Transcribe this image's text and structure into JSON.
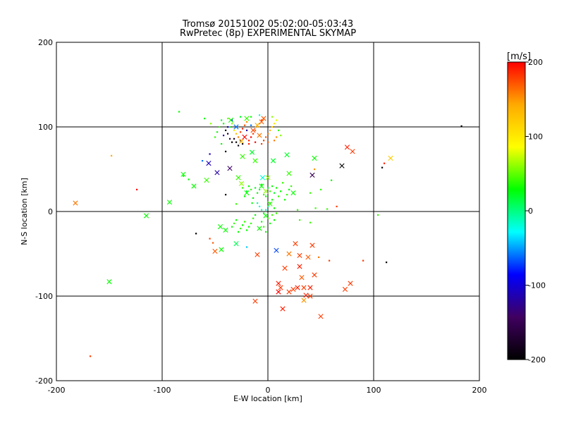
{
  "chart_data": {
    "type": "scatter",
    "title": "Tromsø 20151002 05:02:00-05:03:43",
    "subtitle": "RwPretec (8p) EXPERIMENTAL SKYMAP",
    "xlabel": "E-W location [km]",
    "ylabel": "N-S location [km]",
    "xlim": [
      -200,
      200
    ],
    "ylim": [
      -200,
      200
    ],
    "xticks": [
      "-200",
      "-100",
      "0",
      "100",
      "200"
    ],
    "yticks": [
      "-200",
      "-100",
      "0",
      "100",
      "200"
    ],
    "grid": true,
    "colorbar": {
      "label": "[m/s]",
      "range": [
        -200,
        200
      ],
      "ticks": [
        "200",
        "100",
        "0",
        "-100",
        "-200"
      ],
      "colors": [
        "#ff0000",
        "#ffaa00",
        "#ffff00",
        "#00ff00",
        "#00ffff",
        "#0000ff",
        "#400060",
        "#000000"
      ]
    },
    "cross_points": [
      [
        -182,
        10,
        160
      ],
      [
        -150,
        -83,
        30
      ],
      [
        -115,
        -5,
        30
      ],
      [
        -93,
        11,
        30
      ],
      [
        -80,
        44,
        30
      ],
      [
        -70,
        30,
        30
      ],
      [
        -56,
        57,
        -110
      ],
      [
        -50,
        -47,
        170
      ],
      [
        -58,
        37,
        40
      ],
      [
        -48,
        46,
        -120
      ],
      [
        -45,
        -18,
        30
      ],
      [
        -44,
        -45,
        30
      ],
      [
        -40,
        -22,
        30
      ],
      [
        -36,
        51,
        -140
      ],
      [
        -30,
        -38,
        10
      ],
      [
        -25,
        33,
        60
      ],
      [
        -15,
        70,
        20
      ],
      [
        -10,
        -51,
        180
      ],
      [
        -12,
        -106,
        180
      ],
      [
        -8,
        -20,
        30
      ],
      [
        -5,
        40,
        -20
      ],
      [
        0,
        40,
        60
      ],
      [
        5,
        60,
        20
      ],
      [
        8,
        -46,
        -70
      ],
      [
        10,
        -85,
        190
      ],
      [
        10,
        -95,
        200
      ],
      [
        12,
        -90,
        180
      ],
      [
        14,
        -115,
        190
      ],
      [
        16,
        -67,
        180
      ],
      [
        20,
        -50,
        160
      ],
      [
        20,
        -95,
        180
      ],
      [
        24,
        -92,
        180
      ],
      [
        28,
        -90,
        190
      ],
      [
        26,
        -38,
        180
      ],
      [
        30,
        -52,
        180
      ],
      [
        30,
        -65,
        190
      ],
      [
        32,
        -78,
        170
      ],
      [
        34,
        -90,
        180
      ],
      [
        34,
        -105,
        150
      ],
      [
        36,
        -99,
        190
      ],
      [
        38,
        -54,
        170
      ],
      [
        40,
        -100,
        180
      ],
      [
        40,
        -90,
        190
      ],
      [
        42,
        -40,
        180
      ],
      [
        44,
        -75,
        180
      ],
      [
        44,
        63,
        30
      ],
      [
        42,
        43,
        -150
      ],
      [
        50,
        -124,
        180
      ],
      [
        70,
        54,
        -200
      ],
      [
        75,
        76,
        190
      ],
      [
        73,
        -92,
        180
      ],
      [
        78,
        -85,
        180
      ],
      [
        80,
        71,
        180
      ],
      [
        116,
        63,
        120
      ],
      [
        18,
        67,
        20
      ],
      [
        20,
        45,
        40
      ],
      [
        24,
        22,
        30
      ],
      [
        -20,
        22,
        30
      ],
      [
        2,
        9,
        40
      ],
      [
        -2,
        -5,
        30
      ],
      [
        -20,
        110,
        40
      ],
      [
        -14,
        96,
        180
      ],
      [
        -10,
        102,
        140
      ],
      [
        -8,
        90,
        160
      ],
      [
        -6,
        106,
        170
      ],
      [
        -4,
        110,
        170
      ],
      [
        -25,
        83,
        140
      ],
      [
        -22,
        88,
        200
      ],
      [
        -30,
        100,
        -60
      ],
      [
        -35,
        108,
        30
      ],
      [
        -12,
        60,
        40
      ],
      [
        -28,
        40,
        40
      ],
      [
        -24,
        65,
        40
      ],
      [
        -6,
        30,
        30
      ],
      [
        -2,
        24,
        60
      ]
    ],
    "dot_points": [
      [
        -168,
        -171,
        180
      ],
      [
        -148,
        66,
        140
      ],
      [
        -124,
        26,
        200
      ],
      [
        -84,
        118,
        30
      ],
      [
        -80,
        42,
        30
      ],
      [
        -75,
        38,
        30
      ],
      [
        -62,
        60,
        -60
      ],
      [
        -55,
        68,
        -110
      ],
      [
        -68,
        -26,
        -200
      ],
      [
        -55,
        -32,
        180
      ],
      [
        -52,
        -37,
        170
      ],
      [
        -40,
        71,
        -200
      ],
      [
        -40,
        20,
        -200
      ],
      [
        -30,
        9,
        40
      ],
      [
        -20,
        -42,
        -40
      ],
      [
        -15,
        10,
        30
      ],
      [
        104,
        -4,
        40
      ],
      [
        90,
        -58,
        180
      ],
      [
        112,
        -60,
        -200
      ],
      [
        108,
        52,
        -200
      ],
      [
        110,
        57,
        190
      ],
      [
        183,
        101,
        -200
      ],
      [
        65,
        6,
        180
      ],
      [
        60,
        37,
        30
      ],
      [
        56,
        3,
        40
      ],
      [
        45,
        4,
        40
      ],
      [
        48,
        -54,
        160
      ],
      [
        58,
        -58,
        180
      ],
      [
        44,
        50,
        150
      ],
      [
        28,
        2,
        40
      ],
      [
        30,
        -10,
        40
      ],
      [
        40,
        -13,
        40
      ],
      [
        40,
        22,
        40
      ],
      [
        50,
        26,
        40
      ],
      [
        -12,
        28,
        20
      ],
      [
        -10,
        22,
        30
      ],
      [
        -8,
        26,
        20
      ],
      [
        -6,
        32,
        30
      ],
      [
        -4,
        20,
        40
      ],
      [
        -2,
        18,
        30
      ],
      [
        0,
        28,
        20
      ],
      [
        2,
        24,
        40
      ],
      [
        4,
        30,
        30
      ],
      [
        6,
        22,
        20
      ],
      [
        8,
        28,
        30
      ],
      [
        10,
        18,
        40
      ],
      [
        12,
        24,
        30
      ],
      [
        14,
        34,
        40
      ],
      [
        -14,
        16,
        30
      ],
      [
        -16,
        26,
        40
      ],
      [
        -18,
        30,
        30
      ],
      [
        -20,
        24,
        20
      ],
      [
        -22,
        18,
        30
      ],
      [
        -24,
        28,
        40
      ],
      [
        16,
        14,
        30
      ],
      [
        18,
        20,
        40
      ],
      [
        20,
        26,
        30
      ],
      [
        22,
        30,
        40
      ],
      [
        -10,
        10,
        -10
      ],
      [
        -8,
        6,
        -20
      ],
      [
        -6,
        2,
        -10
      ],
      [
        -4,
        -2,
        20
      ],
      [
        -2,
        2,
        -20
      ],
      [
        0,
        6,
        -10
      ],
      [
        2,
        10,
        30
      ],
      [
        4,
        14,
        30
      ],
      [
        6,
        4,
        30
      ],
      [
        -12,
        -4,
        30
      ],
      [
        -14,
        -8,
        40
      ],
      [
        -16,
        -14,
        40
      ],
      [
        -18,
        -18,
        30
      ],
      [
        -20,
        -22,
        30
      ],
      [
        -22,
        -12,
        40
      ],
      [
        -24,
        -16,
        30
      ],
      [
        -26,
        -20,
        40
      ],
      [
        -28,
        -24,
        30
      ],
      [
        -30,
        -10,
        30
      ],
      [
        -32,
        -14,
        40
      ],
      [
        -34,
        -18,
        30
      ],
      [
        -6,
        -12,
        30
      ],
      [
        -4,
        -18,
        40
      ],
      [
        -2,
        -24,
        30
      ],
      [
        0,
        -8,
        40
      ],
      [
        2,
        -14,
        30
      ],
      [
        4,
        -4,
        40
      ],
      [
        6,
        -10,
        30
      ],
      [
        8,
        -2,
        40
      ],
      [
        -36,
        100,
        30
      ],
      [
        -34,
        104,
        60
      ],
      [
        -32,
        96,
        100
      ],
      [
        -30,
        92,
        130
      ],
      [
        -28,
        88,
        160
      ],
      [
        -26,
        94,
        180
      ],
      [
        -24,
        98,
        190
      ],
      [
        -22,
        102,
        170
      ],
      [
        -20,
        106,
        150
      ],
      [
        -18,
        84,
        190
      ],
      [
        -16,
        88,
        200
      ],
      [
        -14,
        92,
        180
      ],
      [
        -12,
        96,
        160
      ],
      [
        -10,
        100,
        140
      ],
      [
        -8,
        104,
        120
      ],
      [
        -6,
        108,
        190
      ],
      [
        -4,
        84,
        180
      ],
      [
        -2,
        88,
        170
      ],
      [
        0,
        92,
        160
      ],
      [
        2,
        96,
        140
      ],
      [
        4,
        100,
        120
      ],
      [
        6,
        104,
        100
      ],
      [
        8,
        108,
        80
      ],
      [
        -40,
        96,
        -200
      ],
      [
        -38,
        92,
        -180
      ],
      [
        -36,
        86,
        -160
      ],
      [
        -34,
        82,
        -200
      ],
      [
        -32,
        86,
        -180
      ],
      [
        -30,
        82,
        -200
      ],
      [
        -28,
        78,
        -190
      ],
      [
        -26,
        84,
        -200
      ],
      [
        -24,
        80,
        -190
      ],
      [
        -42,
        104,
        30
      ],
      [
        -44,
        108,
        20
      ],
      [
        -46,
        100,
        40
      ],
      [
        -48,
        94,
        30
      ],
      [
        -38,
        110,
        60
      ],
      [
        -26,
        112,
        20
      ],
      [
        -16,
        112,
        30
      ],
      [
        -8,
        114,
        -20
      ],
      [
        4,
        112,
        60
      ],
      [
        10,
        96,
        40
      ],
      [
        12,
        90,
        60
      ],
      [
        -50,
        88,
        40
      ],
      [
        -44,
        80,
        30
      ],
      [
        -18,
        80,
        190
      ],
      [
        -12,
        82,
        200
      ],
      [
        -6,
        80,
        180
      ],
      [
        0,
        82,
        170
      ],
      [
        6,
        84,
        160
      ],
      [
        8,
        88,
        150
      ],
      [
        -42,
        90,
        -120
      ],
      [
        -38,
        100,
        -100
      ],
      [
        -34,
        108,
        -80
      ],
      [
        -20,
        96,
        -120
      ],
      [
        -16,
        102,
        -60
      ],
      [
        -60,
        110,
        30
      ],
      [
        -54,
        104,
        60
      ]
    ]
  }
}
